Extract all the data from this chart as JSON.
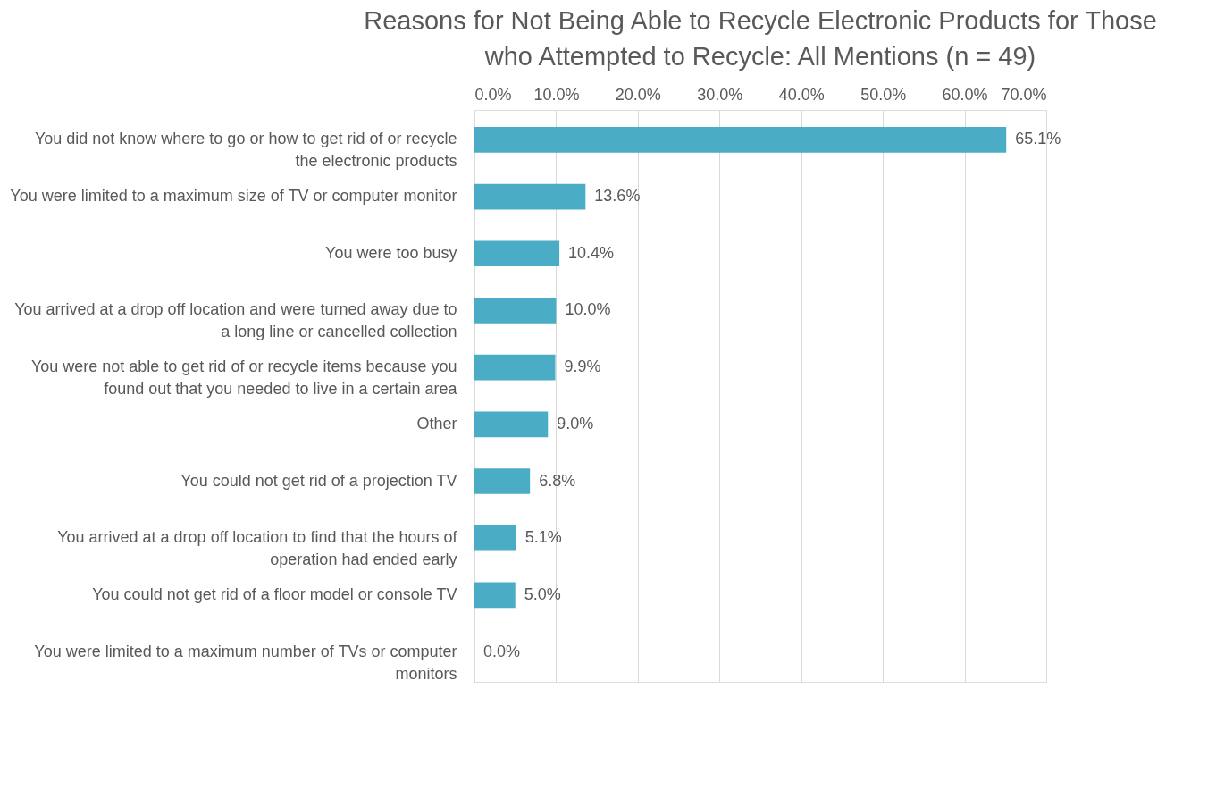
{
  "chart_data": {
    "type": "bar",
    "orientation": "horizontal",
    "title": "Reasons for Not Being Able to Recycle Electronic Products for Those who Attempted to Recycle: All Mentions (n = 49)",
    "categories": [
      "You did not know where to go or how to get rid of or recycle the electronic products",
      "You were limited to a maximum size of TV or computer monitor",
      "You were too busy",
      "You arrived at a drop off location and were turned away due to a long line or cancelled collection",
      "You were not able to get rid of or recycle items because you found out that you needed to live in a certain area",
      "Other",
      "You could not get rid of a projection TV",
      "You arrived at a drop off location to find that the hours of operation had ended early",
      "You could not get rid of a floor model or console TV",
      "You were limited to a maximum number of TVs or computer monitors"
    ],
    "values": [
      65.1,
      13.6,
      10.4,
      10.0,
      9.9,
      9.0,
      6.8,
      5.1,
      5.0,
      0.0
    ],
    "value_labels": [
      "65.1%",
      "13.6%",
      "10.4%",
      "10.0%",
      "9.9%",
      "9.0%",
      "6.8%",
      "5.1%",
      "5.0%",
      "0.0%"
    ],
    "color": "#4bacc6",
    "xlim": [
      0,
      70
    ],
    "xticks": [
      {
        "value": 0,
        "label": "0.0%"
      },
      {
        "value": 10,
        "label": "10.0%"
      },
      {
        "value": 20,
        "label": "20.0%"
      },
      {
        "value": 30,
        "label": "30.0%"
      },
      {
        "value": 40,
        "label": "40.0%"
      },
      {
        "value": 50,
        "label": "50.0%"
      },
      {
        "value": 60,
        "label": "60.0%"
      },
      {
        "value": 70,
        "label": "70.0%"
      }
    ],
    "grid": "x",
    "legend": false
  }
}
